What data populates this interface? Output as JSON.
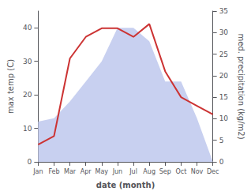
{
  "chart_data": {
    "type": "line",
    "xlabel": "date (month)",
    "ylabel": "max temp (C)",
    "y2label": "med. precipitation (kg/m2)",
    "categories": [
      "Jan",
      "Feb",
      "Mar",
      "Apr",
      "May",
      "Jun",
      "Jul",
      "Aug",
      "Sep",
      "Oct",
      "Nov",
      "Dec"
    ],
    "series": [
      {
        "type": "area",
        "color": "#c8d0f0",
        "values": [
          12,
          13,
          18,
          24,
          30,
          40,
          40,
          36,
          24,
          24,
          13,
          0
        ]
      },
      {
        "type": "line",
        "color": "#cc3333",
        "axis": "y2",
        "values": [
          4,
          6,
          24,
          29,
          31,
          31,
          29,
          32,
          21,
          15,
          13,
          11
        ]
      }
    ],
    "ylim": [
      0,
      45
    ],
    "yticks": [
      0,
      10,
      20,
      30,
      40
    ],
    "y2lim": [
      0,
      35
    ],
    "y2ticks": [
      0,
      5,
      10,
      15,
      20,
      25,
      30,
      35
    ],
    "grid": false
  }
}
